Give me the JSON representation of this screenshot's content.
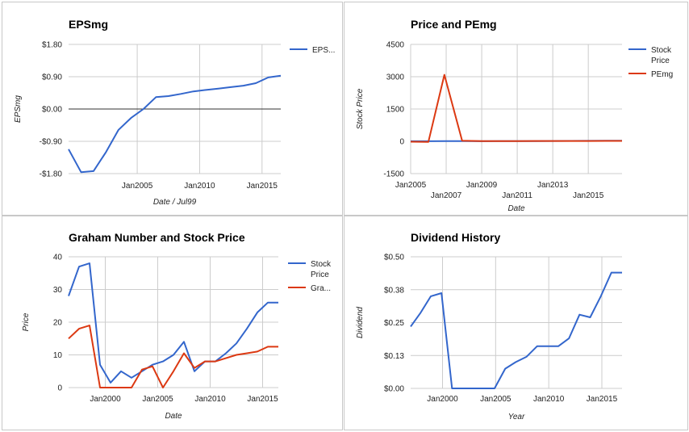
{
  "chart_data": [
    {
      "type": "line",
      "title": "EPSmg",
      "xlabel": "Date / Jul99",
      "ylabel": "EPSmg",
      "legend_position": "right",
      "xlim": [
        1999.5,
        2016.5
      ],
      "ylim": [
        -1.8,
        1.8
      ],
      "x_ticks": [
        {
          "value": 2005,
          "label": "Jan2005"
        },
        {
          "value": 2010,
          "label": "Jan2010"
        },
        {
          "value": 2015,
          "label": "Jan2015"
        }
      ],
      "y_ticks": [
        {
          "value": 1.8,
          "label": "$1.80"
        },
        {
          "value": 0.9,
          "label": "$0.90"
        },
        {
          "value": 0,
          "label": "$0.00"
        },
        {
          "value": -0.9,
          "label": "-$0.90"
        },
        {
          "value": -1.8,
          "label": "-$1.80"
        }
      ],
      "zero_line": true,
      "series": [
        {
          "name": "EPS...",
          "color": "#3366cc",
          "x": [
            1999.5,
            2000.5,
            2001.5,
            2002.5,
            2003.5,
            2004.5,
            2005.5,
            2006.5,
            2007.5,
            2008.5,
            2009.5,
            2010.5,
            2011.5,
            2012.5,
            2013.5,
            2014.5,
            2015.5,
            2016.5
          ],
          "y": [
            -1.12,
            -1.76,
            -1.73,
            -1.2,
            -0.58,
            -0.25,
            0.0,
            0.33,
            0.36,
            0.42,
            0.49,
            0.53,
            0.57,
            0.61,
            0.65,
            0.72,
            0.88,
            0.93
          ]
        }
      ]
    },
    {
      "type": "line",
      "title": "Price and PEmg",
      "xlabel": "Date",
      "ylabel": "Stock Price",
      "legend_position": "right",
      "xlim": [
        2005,
        2016.9
      ],
      "ylim": [
        -1500,
        4500
      ],
      "x_ticks": [
        {
          "value": 2005,
          "label": "Jan2005",
          "row": 1
        },
        {
          "value": 2007,
          "label": "Jan2007",
          "row": 2
        },
        {
          "value": 2009,
          "label": "Jan2009",
          "row": 1
        },
        {
          "value": 2011,
          "label": "Jan2011",
          "row": 2
        },
        {
          "value": 2013,
          "label": "Jan2013",
          "row": 1
        },
        {
          "value": 2015,
          "label": "Jan2015",
          "row": 2
        }
      ],
      "y_ticks": [
        {
          "value": 4500,
          "label": "4500"
        },
        {
          "value": 3000,
          "label": "3000"
        },
        {
          "value": 1500,
          "label": "1500"
        },
        {
          "value": 0,
          "label": "0"
        },
        {
          "value": -1500,
          "label": "-1500"
        }
      ],
      "series": [
        {
          "name": "Stock Price",
          "legend_lines": [
            "Stock",
            "Price"
          ],
          "color": "#3366cc",
          "x": [
            2005,
            2006,
            2007,
            2008,
            2009,
            2010,
            2011,
            2012,
            2013,
            2014,
            2015,
            2016,
            2016.9
          ],
          "y": [
            5,
            5,
            8,
            10,
            5,
            8,
            8,
            10,
            14,
            18,
            23,
            26,
            26
          ]
        },
        {
          "name": "PEmg",
          "legend_lines": [
            "PEmg"
          ],
          "color": "#dc3912",
          "x": [
            2005,
            2006,
            2006.9,
            2007.9,
            2009,
            2010,
            2011,
            2012,
            2013,
            2014,
            2015,
            2016,
            2016.9
          ],
          "y": [
            -20,
            -25,
            3090,
            25,
            10,
            12,
            13,
            14,
            15,
            16,
            16,
            17,
            17
          ]
        }
      ]
    },
    {
      "type": "line",
      "title": "Graham Number and Stock Price",
      "xlabel": "Date",
      "ylabel": "Price",
      "legend_position": "right",
      "xlim": [
        1996.5,
        2016.5
      ],
      "ylim": [
        0,
        40
      ],
      "x_ticks": [
        {
          "value": 2000,
          "label": "Jan2000"
        },
        {
          "value": 2005,
          "label": "Jan2005"
        },
        {
          "value": 2010,
          "label": "Jan2010"
        },
        {
          "value": 2015,
          "label": "Jan2015"
        }
      ],
      "y_ticks": [
        {
          "value": 40,
          "label": "40"
        },
        {
          "value": 30,
          "label": "30"
        },
        {
          "value": 20,
          "label": "20"
        },
        {
          "value": 10,
          "label": "10"
        },
        {
          "value": 0,
          "label": "0"
        }
      ],
      "series": [
        {
          "name": "Stock Price",
          "legend_lines": [
            "Stock",
            "Price"
          ],
          "color": "#3366cc",
          "x": [
            1996.5,
            1997.5,
            1998.5,
            1999.5,
            2000.5,
            2001.5,
            2002.5,
            2003.5,
            2004.5,
            2005.5,
            2006.5,
            2007.5,
            2008.5,
            2009.5,
            2010.5,
            2011.5,
            2012.5,
            2013.5,
            2014.5,
            2015.5,
            2016.5
          ],
          "y": [
            28,
            37,
            38,
            7,
            1.5,
            5,
            3,
            5,
            7,
            8,
            10,
            14,
            5,
            8,
            8,
            10.5,
            13.5,
            18,
            23,
            26,
            26
          ]
        },
        {
          "name": "Gra...",
          "legend_lines": [
            "Gra..."
          ],
          "color": "#dc3912",
          "x": [
            1996.5,
            1997.5,
            1998.5,
            1999.5,
            2000.5,
            2001.5,
            2002.5,
            2003.5,
            2004.5,
            2005.5,
            2006.5,
            2007.5,
            2008.5,
            2009.5,
            2010.5,
            2011.5,
            2012.5,
            2013.5,
            2014.5,
            2015.5,
            2016.5
          ],
          "y": [
            15,
            18,
            19,
            0,
            0,
            0,
            0,
            5.5,
            6.5,
            0,
            5,
            10.5,
            6,
            8,
            8,
            9,
            10,
            10.5,
            11,
            12.5,
            12.5
          ]
        }
      ]
    },
    {
      "type": "line",
      "title": "Dividend History",
      "xlabel": "Year",
      "ylabel": "Dividend",
      "legend_position": "none",
      "xlim": [
        1997,
        2016.9
      ],
      "ylim": [
        0,
        0.5
      ],
      "x_ticks": [
        {
          "value": 2000,
          "label": "Jan2000"
        },
        {
          "value": 2005,
          "label": "Jan2005"
        },
        {
          "value": 2010,
          "label": "Jan2010"
        },
        {
          "value": 2015,
          "label": "Jan2015"
        }
      ],
      "y_ticks": [
        {
          "value": 0.5,
          "label": "$0.50"
        },
        {
          "value": 0.375,
          "label": "$0.38"
        },
        {
          "value": 0.25,
          "label": "$0.25"
        },
        {
          "value": 0.125,
          "label": "$0.13"
        },
        {
          "value": 0,
          "label": "$0.00"
        }
      ],
      "series": [
        {
          "name": "Dividend",
          "color": "#3366cc",
          "x": [
            1997,
            1997.9,
            1998.9,
            1999.9,
            2000.9,
            2001.9,
            2002.9,
            2003.9,
            2004.9,
            2005.9,
            2006.9,
            2007.9,
            2008.9,
            2009.9,
            2010.9,
            2011.9,
            2012.9,
            2013.9,
            2014.9,
            2015.9,
            2016.9
          ],
          "y": [
            0.235,
            0.285,
            0.35,
            0.362,
            0,
            0,
            0,
            0,
            0,
            0.075,
            0.1,
            0.12,
            0.16,
            0.16,
            0.16,
            0.19,
            0.28,
            0.27,
            0.35,
            0.44,
            0.44
          ]
        }
      ]
    }
  ]
}
